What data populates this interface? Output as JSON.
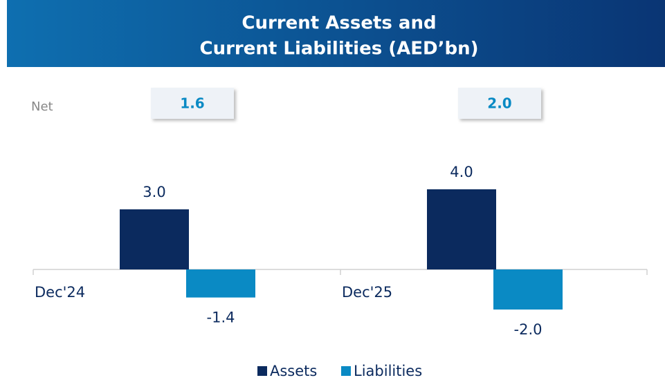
{
  "chart_data": {
    "type": "bar",
    "title": [
      "Current Assets and",
      "Current Liabilities (AED’bn)"
    ],
    "categories": [
      "Dec'24",
      "Dec'25"
    ],
    "series": [
      {
        "name": "Assets",
        "color": "#0b2a5e",
        "values": [
          3.0,
          4.0
        ],
        "value_labels": [
          "3.0",
          "4.0"
        ]
      },
      {
        "name": "Liabilities",
        "color": "#0a8ac4",
        "values": [
          -1.4,
          -2.0
        ],
        "value_labels": [
          "-1.4",
          "-2.0"
        ]
      }
    ],
    "net": {
      "label": "Net",
      "values": [
        1.6,
        2.0
      ],
      "value_labels": [
        "1.6",
        "2.0"
      ]
    },
    "ylim": [
      -3,
      6
    ]
  }
}
